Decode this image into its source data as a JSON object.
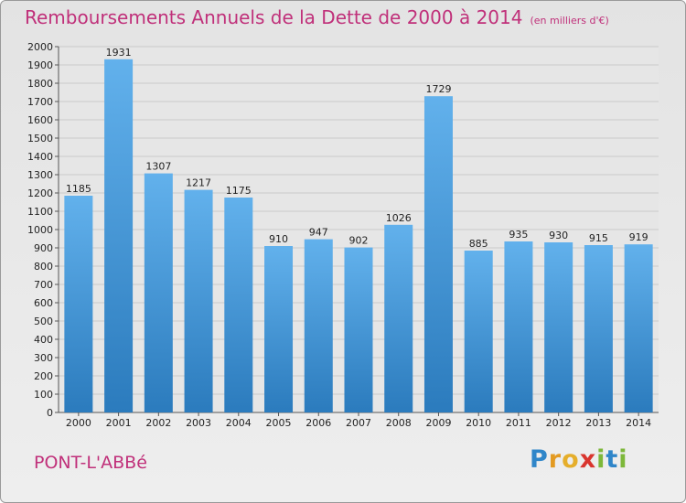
{
  "chart_data": {
    "type": "bar",
    "title": "Remboursements Annuels de la Dette de 2000 à 2014",
    "unit_note": "(en milliers d'€)",
    "categories": [
      "2000",
      "2001",
      "2002",
      "2003",
      "2004",
      "2005",
      "2006",
      "2007",
      "2008",
      "2009",
      "2010",
      "2011",
      "2012",
      "2013",
      "2014"
    ],
    "values": [
      1185,
      1931,
      1307,
      1217,
      1175,
      910,
      947,
      902,
      1026,
      1729,
      885,
      935,
      930,
      915,
      919
    ],
    "ylim": [
      0,
      2000
    ],
    "yticks": [
      0,
      100,
      200,
      300,
      400,
      500,
      600,
      700,
      800,
      900,
      1000,
      1100,
      1200,
      1300,
      1400,
      1500,
      1600,
      1700,
      1800,
      1900,
      2000
    ],
    "grid": true,
    "bar_color_top": "#62b1ec",
    "bar_color_bottom": "#2b7bbd",
    "title_color": "#c0307a"
  },
  "footer": {
    "commune": "PONT-L'ABBé",
    "logo_letters": [
      {
        "ch": "P",
        "color": "#2f86c9"
      },
      {
        "ch": "r",
        "color": "#e39a21"
      },
      {
        "ch": "o",
        "color": "#e5ae2b"
      },
      {
        "ch": "x",
        "color": "#d9352e"
      },
      {
        "ch": "i",
        "color": "#7db83a"
      },
      {
        "ch": "t",
        "color": "#2f86c9"
      },
      {
        "ch": "i",
        "color": "#7db83a"
      }
    ]
  }
}
